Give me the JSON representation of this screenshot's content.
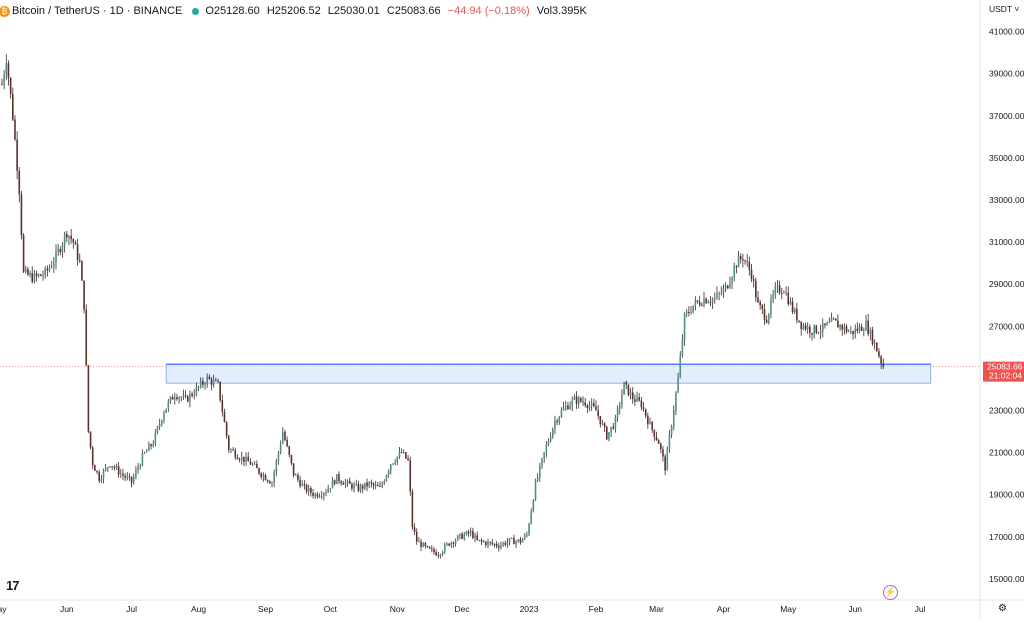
{
  "header": {
    "symbol": "Bitcoin / TetherUS · 1D · BINANCE",
    "open": "O25128.60",
    "high": "H25206.52",
    "low": "L25030.01",
    "close": "C25083.66",
    "change": "−44.94 (−0.18%)",
    "volume": "Vol3.395K"
  },
  "currency_label": "USDT",
  "logo_text": "17",
  "colors": {
    "up": "#26a69a",
    "down": "#ef5350",
    "candle": "#3a2a28",
    "zone_fill": "#dbe7fb",
    "zone_border": "#7aa2e8",
    "line": "#2962ff",
    "price_tag": "#ef5350"
  },
  "chart_data": {
    "type": "candlestick",
    "ylim": [
      14000,
      42500
    ],
    "yticks": [
      "41000.00",
      "39000.00",
      "37000.00",
      "35000.00",
      "33000.00",
      "31000.00",
      "29000.00",
      "27000.00",
      "25000.00",
      "23000.00",
      "21000.00",
      "19000.00",
      "17000.00",
      "15000.00"
    ],
    "x_labels": [
      {
        "label": "ay",
        "day": 0
      },
      {
        "label": "Jun",
        "day": 30
      },
      {
        "label": "Jul",
        "day": 60
      },
      {
        "label": "Aug",
        "day": 91
      },
      {
        "label": "Sep",
        "day": 122
      },
      {
        "label": "Oct",
        "day": 152
      },
      {
        "label": "Nov",
        "day": 183
      },
      {
        "label": "Dec",
        "day": 213
      },
      {
        "label": "2023",
        "day": 244
      },
      {
        "label": "Feb",
        "day": 275
      },
      {
        "label": "Mar",
        "day": 303
      },
      {
        "label": "Apr",
        "day": 334
      },
      {
        "label": "May",
        "day": 364
      },
      {
        "label": "Jun",
        "day": 395
      },
      {
        "label": "Jul",
        "day": 425
      }
    ],
    "anchors": [
      [
        0,
        38500
      ],
      [
        2,
        39800
      ],
      [
        5,
        37000
      ],
      [
        8,
        33500
      ],
      [
        10,
        29500
      ],
      [
        15,
        29300
      ],
      [
        20,
        29500
      ],
      [
        25,
        30300
      ],
      [
        30,
        31500
      ],
      [
        33,
        31000
      ],
      [
        36,
        30000
      ],
      [
        38,
        28000
      ],
      [
        40,
        22000
      ],
      [
        42,
        20500
      ],
      [
        45,
        19800
      ],
      [
        50,
        20500
      ],
      [
        55,
        20000
      ],
      [
        60,
        19600
      ],
      [
        65,
        20800
      ],
      [
        70,
        21500
      ],
      [
        75,
        23000
      ],
      [
        80,
        23800
      ],
      [
        85,
        23500
      ],
      [
        90,
        24000
      ],
      [
        95,
        24500
      ],
      [
        100,
        24200
      ],
      [
        105,
        21200
      ],
      [
        110,
        20800
      ],
      [
        115,
        20500
      ],
      [
        120,
        20000
      ],
      [
        125,
        19600
      ],
      [
        130,
        22000
      ],
      [
        135,
        20000
      ],
      [
        140,
        19300
      ],
      [
        145,
        19000
      ],
      [
        150,
        19200
      ],
      [
        155,
        19800
      ],
      [
        160,
        19500
      ],
      [
        165,
        19300
      ],
      [
        170,
        19500
      ],
      [
        175,
        19300
      ],
      [
        180,
        20500
      ],
      [
        185,
        21000
      ],
      [
        188,
        20600
      ],
      [
        190,
        17500
      ],
      [
        192,
        16800
      ],
      [
        197,
        16400
      ],
      [
        202,
        16200
      ],
      [
        207,
        16700
      ],
      [
        212,
        17000
      ],
      [
        217,
        17200
      ],
      [
        220,
        16800
      ],
      [
        225,
        16700
      ],
      [
        230,
        16600
      ],
      [
        235,
        16800
      ],
      [
        240,
        16800
      ],
      [
        243,
        17100
      ],
      [
        247,
        19500
      ],
      [
        252,
        21300
      ],
      [
        256,
        22500
      ],
      [
        260,
        23100
      ],
      [
        265,
        23500
      ],
      [
        270,
        23400
      ],
      [
        275,
        23000
      ],
      [
        280,
        21800
      ],
      [
        284,
        22500
      ],
      [
        288,
        24200
      ],
      [
        292,
        23600
      ],
      [
        296,
        23300
      ],
      [
        300,
        22300
      ],
      [
        304,
        21500
      ],
      [
        307,
        20300
      ],
      [
        310,
        22400
      ],
      [
        313,
        24500
      ],
      [
        316,
        27400
      ],
      [
        320,
        28000
      ],
      [
        325,
        28300
      ],
      [
        330,
        28300
      ],
      [
        335,
        28800
      ],
      [
        340,
        30000
      ],
      [
        343,
        30300
      ],
      [
        347,
        29500
      ],
      [
        350,
        28000
      ],
      [
        354,
        27400
      ],
      [
        358,
        28700
      ],
      [
        362,
        28800
      ],
      [
        366,
        27800
      ],
      [
        370,
        27100
      ],
      [
        375,
        26800
      ],
      [
        380,
        26900
      ],
      [
        385,
        27200
      ],
      [
        390,
        26900
      ],
      [
        393,
        26700
      ],
      [
        397,
        26900
      ],
      [
        400,
        27100
      ],
      [
        403,
        26400
      ],
      [
        405,
        25900
      ],
      [
        407,
        25350
      ],
      [
        408,
        25083
      ]
    ],
    "resistance_zone": {
      "start_day": 76,
      "end_day": 430,
      "low": 24300,
      "high": 25200
    },
    "current_price": "25083.66",
    "countdown": "21:02:04"
  }
}
